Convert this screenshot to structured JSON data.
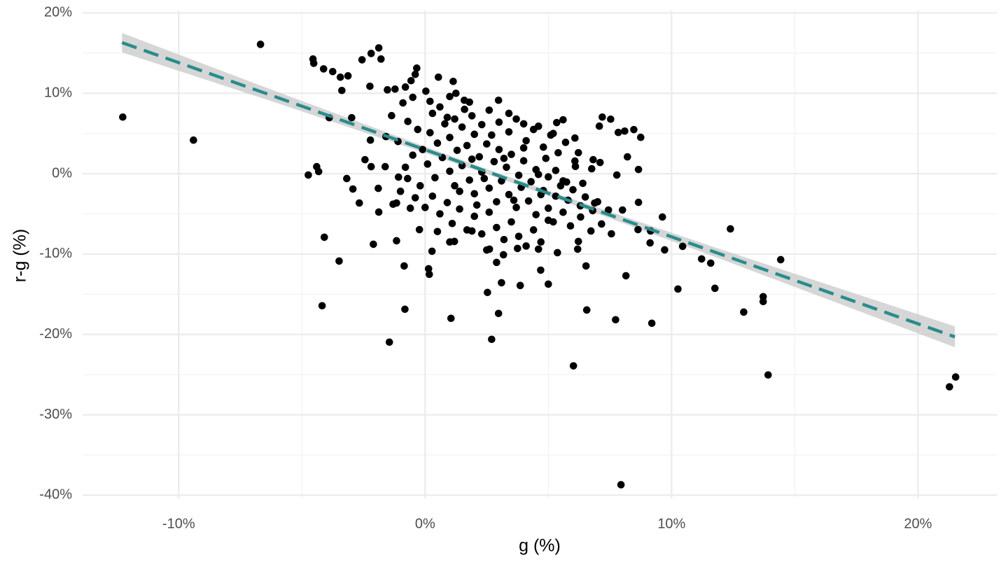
{
  "chart_data": {
    "type": "scatter",
    "x_label": "g (%)",
    "y_label": "r-g (%)",
    "color": "#000000",
    "grid": true,
    "xlim": [
      -13.9,
      23.2
    ],
    "ylim": [
      -40.4,
      20.3
    ],
    "xticks": [
      {
        "value": -10,
        "label": "-10%"
      },
      {
        "value": 0,
        "label": "0%"
      },
      {
        "value": 10,
        "label": "10%"
      },
      {
        "value": 20,
        "label": "20%"
      }
    ],
    "yticks": [
      {
        "value": 20,
        "label": "20%"
      },
      {
        "value": 10,
        "label": "10%"
      },
      {
        "value": 0,
        "label": "0%"
      },
      {
        "value": -10,
        "label": "-10%"
      },
      {
        "value": -20,
        "label": "-20%"
      },
      {
        "value": -30,
        "label": "-30%"
      },
      {
        "value": -40,
        "label": "-40%"
      }
    ],
    "xminor": [
      -5,
      5,
      15
    ],
    "yminor": [
      15,
      5,
      -5,
      -15,
      -25,
      -35
    ],
    "fit": {
      "color": "#2a8c8c",
      "band_color": "#c8c8c8",
      "x": [
        -12.3,
        -6,
        0,
        3,
        6,
        12,
        21.5
      ],
      "y": [
        16.3,
        9.48,
        2.98,
        -0.27,
        -3.52,
        -10.02,
        -20.3
      ],
      "lower": [
        15.1,
        8.78,
        2.58,
        -0.57,
        -3.87,
        -10.62,
        -21.6
      ],
      "upper": [
        17.5,
        10.18,
        3.38,
        0.03,
        -3.17,
        -9.42,
        -19.0
      ]
    },
    "x": [
      -12.27,
      -9.4,
      -6.68,
      -4.55,
      -4.52,
      -4.12,
      -3.75,
      -3.44,
      -3.13,
      -3.38,
      -2.56,
      -2.19,
      -1.88,
      -1.79,
      -2.24,
      -4.74,
      -4.4,
      -4.32,
      -4.09,
      -4.18,
      -3.49,
      -3.18,
      -2.93,
      -2.67,
      -2.44,
      -2.19,
      -2.1,
      -1.88,
      -1.62,
      -1.45,
      -1.16,
      -0.85,
      -0.82,
      0.14,
      0.17,
      1.05,
      2.7,
      2.53,
      2.98,
      2.9,
      3.1,
      3.86,
      4.69,
      5.0,
      6.02,
      6.56,
      6.53,
      7.73,
      7.95,
      8.15,
      9.2,
      10.26,
      11.76,
      12.39,
      12.93,
      13.72,
      13.72,
      13.92,
      14.43,
      11.59,
      11.22,
      10.45,
      9.72,
      9.63,
      9.15,
      9.13,
      21.28,
      21.53,
      8.66,
      8.64,
      8.66,
      8.21,
      8.75,
      8.47,
      8.1,
      7.84,
      7.19,
      7.07,
      7.53,
      7.78,
      6.08,
      5.34,
      2.98,
      1.14,
      0.54,
      -0.34,
      -0.4,
      -0.57,
      -1.22,
      -1.53,
      -0.8,
      0.03,
      1.25,
      1.59,
      -1.36,
      -2.98,
      -3.89,
      -1.59,
      -2.22,
      -1.9,
      -1.16,
      -1.08,
      -0.71,
      -0.23,
      0.28,
      1.19,
      1.9,
      2.61,
      3.18,
      3.75,
      4.6,
      5.37,
      6.19,
      6.73,
      6.31,
      6.88,
      7.44,
      7.16,
      7.56,
      8.01,
      6.22,
      6.22,
      6.76,
      6.82,
      7.1,
      6.08,
      5.74,
      0.2,
      0.5,
      0.8,
      1.0,
      1.3,
      1.5,
      1.7,
      2.0,
      2.2,
      2.5,
      2.8,
      3.0,
      3.3,
      3.5,
      3.8,
      4.0,
      4.3,
      4.5,
      4.8,
      5.0,
      5.3,
      5.5,
      5.8,
      6.0,
      6.3,
      6.5,
      6.8,
      7.0,
      0.1,
      0.4,
      0.7,
      1.0,
      1.2,
      1.5,
      1.8,
      2.0,
      2.3,
      2.6,
      2.9,
      3.1,
      3.4,
      3.7,
      3.9,
      4.2,
      4.5,
      4.7,
      5.0,
      5.2,
      5.6,
      5.9,
      0.3,
      0.6,
      0.9,
      1.2,
      1.6,
      1.9,
      2.3,
      2.6,
      3.0,
      3.4,
      3.7,
      4.1,
      4.4,
      4.8,
      5.1,
      5.4,
      5.7,
      -0.1,
      -0.3,
      -0.5,
      -0.2,
      -0.4,
      0.0,
      0.3,
      0.6,
      0.9,
      1.1,
      1.4,
      1.7,
      2.0,
      2.3,
      2.6,
      2.9,
      3.2,
      3.5,
      3.8,
      4.1,
      4.4,
      4.7,
      5.0,
      1.4,
      1.9,
      2.4,
      2.7,
      3.2,
      3.6,
      4.0,
      4.6,
      4.9,
      5.3,
      5.6,
      6.1,
      6.4,
      2.1,
      2.5,
      1.0,
      0.5,
      -0.6,
      -0.8,
      -1.0,
      -0.7,
      -1.1,
      -1.3,
      -0.9,
      -0.5,
      0.2,
      1.0,
      1.8,
      3.4,
      4.0,
      4.6,
      5.2,
      5.6
    ],
    "values": [
      7.04,
      4.17,
      16.09,
      14.26,
      13.74,
      13.04,
      12.7,
      12.0,
      12.17,
      10.35,
      14.17,
      14.96,
      15.65,
      14.26,
      10.87,
      -0.17,
      0.87,
      0.26,
      -7.91,
      -16.43,
      -10.87,
      -0.61,
      -1.91,
      -3.65,
      1.74,
      0.87,
      -8.78,
      -4.78,
      0.87,
      -20.96,
      -8.35,
      -11.48,
      -16.87,
      -11.83,
      -12.52,
      -18.0,
      -20.61,
      -14.78,
      -17.39,
      -11.04,
      -13.57,
      -13.91,
      -12.0,
      -13.74,
      -23.91,
      -16.96,
      -11.48,
      -18.17,
      -38.7,
      -12.7,
      -18.61,
      -14.35,
      -14.26,
      -6.87,
      -17.22,
      -15.3,
      -15.91,
      -25.04,
      -10.7,
      -11.13,
      -10.61,
      -9.04,
      -9.48,
      -5.39,
      -7.13,
      -8.61,
      -26.52,
      -25.3,
      0.52,
      -6.96,
      -3.57,
      2.09,
      4.52,
      5.48,
      5.3,
      5.13,
      7.04,
      5.91,
      6.78,
      -0.17,
      4.43,
      6.35,
      9.13,
      11.48,
      12.0,
      13.13,
      12.35,
      11.57,
      10.52,
      10.43,
      10.78,
      10.26,
      10.0,
      9.13,
      7.22,
      6.96,
      6.96,
      4.61,
      4.17,
      -1.83,
      -3.65,
      -0.43,
      -0.61,
      -6.96,
      -9.65,
      -8.43,
      -7.13,
      -9.39,
      -10.09,
      -9.3,
      -9.39,
      -9.83,
      -9.39,
      -7.13,
      -5.39,
      -3.65,
      -4.52,
      -6.26,
      -7.48,
      -4.52,
      -8.43,
      2.61,
      0.61,
      1.74,
      1.39,
      1.57,
      -1.04,
      5.1,
      3.8,
      6.2,
      4.5,
      2.9,
      5.8,
      3.5,
      4.9,
      2.1,
      3.7,
      1.5,
      3.0,
      0.8,
      2.4,
      -0.2,
      1.6,
      -1.0,
      0.5,
      -2.1,
      -0.4,
      -2.8,
      -1.5,
      -3.3,
      -2.0,
      -4.0,
      -2.9,
      -4.6,
      -3.5,
      1.2,
      -0.5,
      2.0,
      0.3,
      -1.5,
      1.0,
      -0.8,
      -2.5,
      0.2,
      -1.8,
      -3.5,
      -0.9,
      -2.6,
      -4.2,
      -1.7,
      -3.4,
      -5.1,
      -2.6,
      -4.3,
      -6.0,
      -4.8,
      -6.5,
      7.5,
      8.3,
      7.0,
      6.8,
      8.0,
      7.2,
      6.1,
      7.9,
      6.4,
      5.2,
      6.8,
      4.1,
      5.5,
      3.3,
      4.8,
      2.6,
      3.9,
      3.0,
      5.5,
      2.3,
      -1.5,
      -3.0,
      -4.2,
      -2.8,
      -5.0,
      -3.6,
      -6.2,
      -4.4,
      -7.0,
      -5.3,
      -7.5,
      -4.8,
      -6.7,
      -8.2,
      -6.0,
      -7.8,
      -9.0,
      -7.0,
      -8.5,
      -5.8,
      -2.2,
      1.8,
      -0.6,
      4.8,
      1.9,
      -3.3,
      3.2,
      -0.1,
      1.9,
      0.4,
      -0.9,
      0.9,
      -1.2,
      -3.9,
      -9.5,
      -8.5,
      -7.2,
      -4.3,
      0.8,
      -2.2,
      6.5,
      4.0,
      -3.8,
      8.8,
      9.5,
      9.0,
      9.6,
      8.9,
      7.5,
      6.2,
      5.9,
      5.0,
      6.7
    ]
  }
}
